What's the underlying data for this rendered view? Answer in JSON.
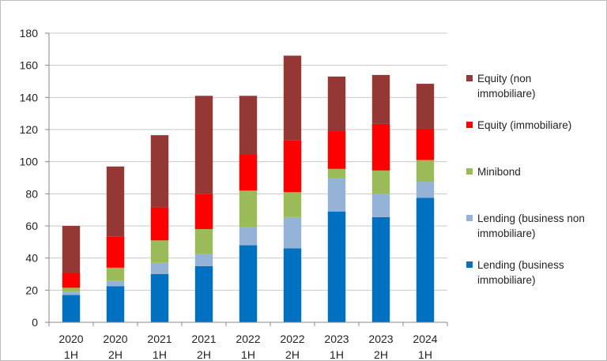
{
  "chart_data": {
    "type": "bar",
    "stacked": true,
    "categories": [
      [
        "2020",
        "1H"
      ],
      [
        "2020",
        "2H"
      ],
      [
        "2021",
        "1H"
      ],
      [
        "2021",
        "2H"
      ],
      [
        "2022",
        "1H"
      ],
      [
        "2022",
        "2H"
      ],
      [
        "2023",
        "1H"
      ],
      [
        "2023",
        "2H"
      ],
      [
        "2024",
        "1H"
      ]
    ],
    "series": [
      {
        "name": [
          "Lending (business",
          "immobiliare)"
        ],
        "color": "#0070c0",
        "values": [
          17,
          22.5,
          30,
          35,
          48,
          46,
          69,
          65.5,
          77.5
        ]
      },
      {
        "name": [
          "Lending (business non",
          "immobiliare)"
        ],
        "color": "#95b3d7",
        "values": [
          2,
          3.5,
          7,
          7.5,
          11.5,
          19.5,
          21,
          14.5,
          10
        ]
      },
      {
        "name": [
          "Minibond"
        ],
        "color": "#9bbb59",
        "values": [
          2.5,
          8,
          14,
          15.5,
          22.5,
          15.5,
          5.5,
          14.5,
          13.5
        ]
      },
      {
        "name": [
          "Equity (immobiliare)"
        ],
        "color": "#ff0000",
        "values": [
          9.5,
          19.5,
          20.5,
          22,
          22.5,
          32.5,
          23.5,
          29,
          19.5
        ]
      },
      {
        "name": [
          "Equity (non",
          "immobiliare)"
        ],
        "color": "#953735",
        "values": [
          29,
          43.5,
          45,
          61,
          36.5,
          52.5,
          34,
          30.5,
          28
        ]
      }
    ],
    "yticks": [
      0,
      20,
      40,
      60,
      80,
      100,
      120,
      140,
      160,
      180
    ],
    "ylim": [
      0,
      180
    ],
    "grid": true,
    "legend": "right"
  }
}
